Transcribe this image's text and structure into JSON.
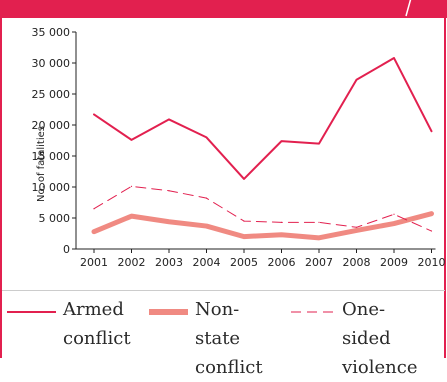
{
  "colors": {
    "accent": "#e2204f",
    "nonstate": "#f08a82",
    "axis": "#222222"
  },
  "chart_data": {
    "type": "line",
    "x": [
      "2001",
      "2002",
      "2003",
      "2004",
      "2005",
      "2006",
      "2007",
      "2008",
      "2009",
      "2010"
    ],
    "ylabel": "No. of fatalities",
    "xlabel": "",
    "ylim": [
      0,
      35000
    ],
    "yticks": [
      0,
      5000,
      10000,
      15000,
      20000,
      25000,
      30000,
      35000
    ],
    "ytick_labels": [
      "0",
      "5 000",
      "10 000",
      "15 000",
      "20 000",
      "25 000",
      "30 000",
      "35 000"
    ],
    "grid": false,
    "legend_position": "bottom",
    "series": [
      {
        "name": "Armed conflict",
        "style": "solid-thin",
        "color": "#e2204f",
        "values": [
          21700,
          17600,
          20900,
          18000,
          11300,
          17400,
          17000,
          27300,
          30800,
          19000
        ]
      },
      {
        "name": "Non-state conflict",
        "style": "solid-thick",
        "color": "#f08a82",
        "values": [
          2800,
          5300,
          4400,
          3700,
          2000,
          2300,
          1800,
          3000,
          4100,
          5700
        ]
      },
      {
        "name": "One-sided violence",
        "style": "dashed",
        "color": "#e2204f",
        "values": [
          6500,
          10100,
          9400,
          8200,
          4500,
          4300,
          4300,
          3500,
          5600,
          2900
        ]
      }
    ]
  },
  "legend": [
    {
      "line1": "Armed",
      "line2": "conflict"
    },
    {
      "line1": "Non-state",
      "line2": "conflict"
    },
    {
      "line1": "One-sided",
      "line2": "violence"
    }
  ]
}
